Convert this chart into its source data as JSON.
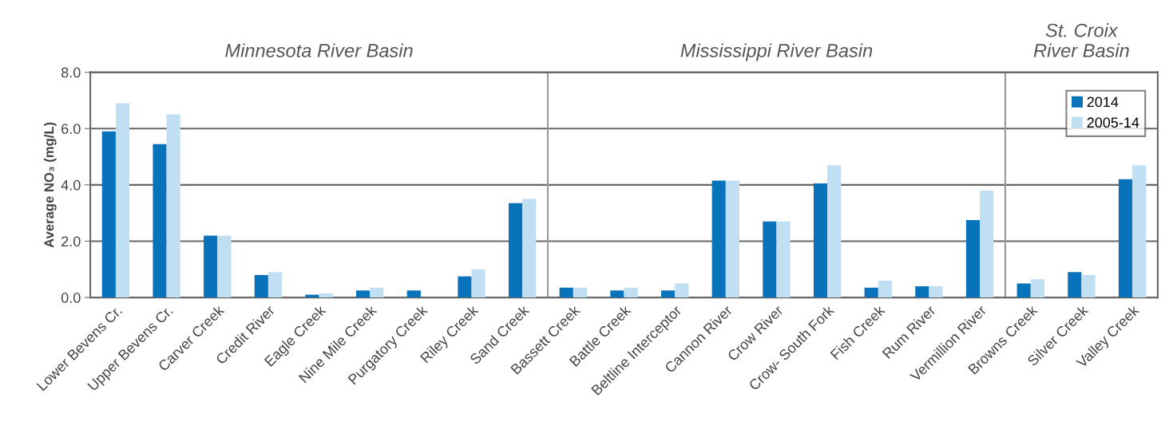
{
  "chart_data": {
    "type": "bar",
    "ylabel": "Average NO₃ (mg/L)",
    "categories": [
      "Lower Bevens Cr.",
      "Upper Bevens Cr.",
      "Carver Creek",
      "Credit River",
      "Eagle Creek",
      "Nine Mile Creek",
      "Purgatory Creek",
      "Riley Creek",
      "Sand Creek",
      "Bassett Creek",
      "Battle Creek",
      "Beltline Interceptor",
      "Cannon River",
      "Crow River",
      "Crow- South Fork",
      "Fish Creek",
      "Rum River",
      "Vermillion River",
      "Browns Creek",
      "Silver Creek",
      "Valley Creek"
    ],
    "series": [
      {
        "name": "2014",
        "color": "#0872bb",
        "values": [
          5.9,
          5.45,
          2.2,
          0.8,
          0.1,
          0.25,
          0.25,
          0.75,
          3.35,
          0.35,
          0.25,
          0.25,
          4.15,
          2.7,
          4.05,
          0.35,
          0.4,
          2.75,
          0.5,
          0.9,
          4.2
        ]
      },
      {
        "name": "2005-14",
        "color": "#c1dff3",
        "values": [
          6.9,
          6.5,
          2.2,
          0.9,
          0.15,
          0.35,
          null,
          1.0,
          3.5,
          0.35,
          0.35,
          0.5,
          4.15,
          2.7,
          4.7,
          0.6,
          0.4,
          3.8,
          0.65,
          0.8,
          4.7
        ]
      }
    ],
    "annotations": [
      "Minnesota River Basin",
      "Mississippi River Basin",
      "St. Croix\nRiver Basin"
    ],
    "ylim": [
      0,
      8
    ],
    "yticks": [
      {
        "value": 0,
        "label": "0.0"
      },
      {
        "value": 2,
        "label": "2.0"
      },
      {
        "value": 4,
        "label": "4.0"
      },
      {
        "value": 6,
        "label": "6.0"
      },
      {
        "value": 8,
        "label": "8.0"
      }
    ],
    "grid": "y",
    "legend": "top right"
  }
}
